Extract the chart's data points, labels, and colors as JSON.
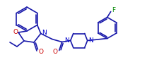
{
  "bg_color": "#ffffff",
  "line_color": "#1a1aaa",
  "label_color_N": "#0000cc",
  "label_color_O": "#cc0000",
  "label_color_F": "#008800",
  "line_width": 1.2,
  "font_size": 6.5,
  "figsize": [
    2.08,
    0.95
  ],
  "dpi": 100,
  "xlim": [
    0,
    208
  ],
  "ylim": [
    0,
    95
  ]
}
